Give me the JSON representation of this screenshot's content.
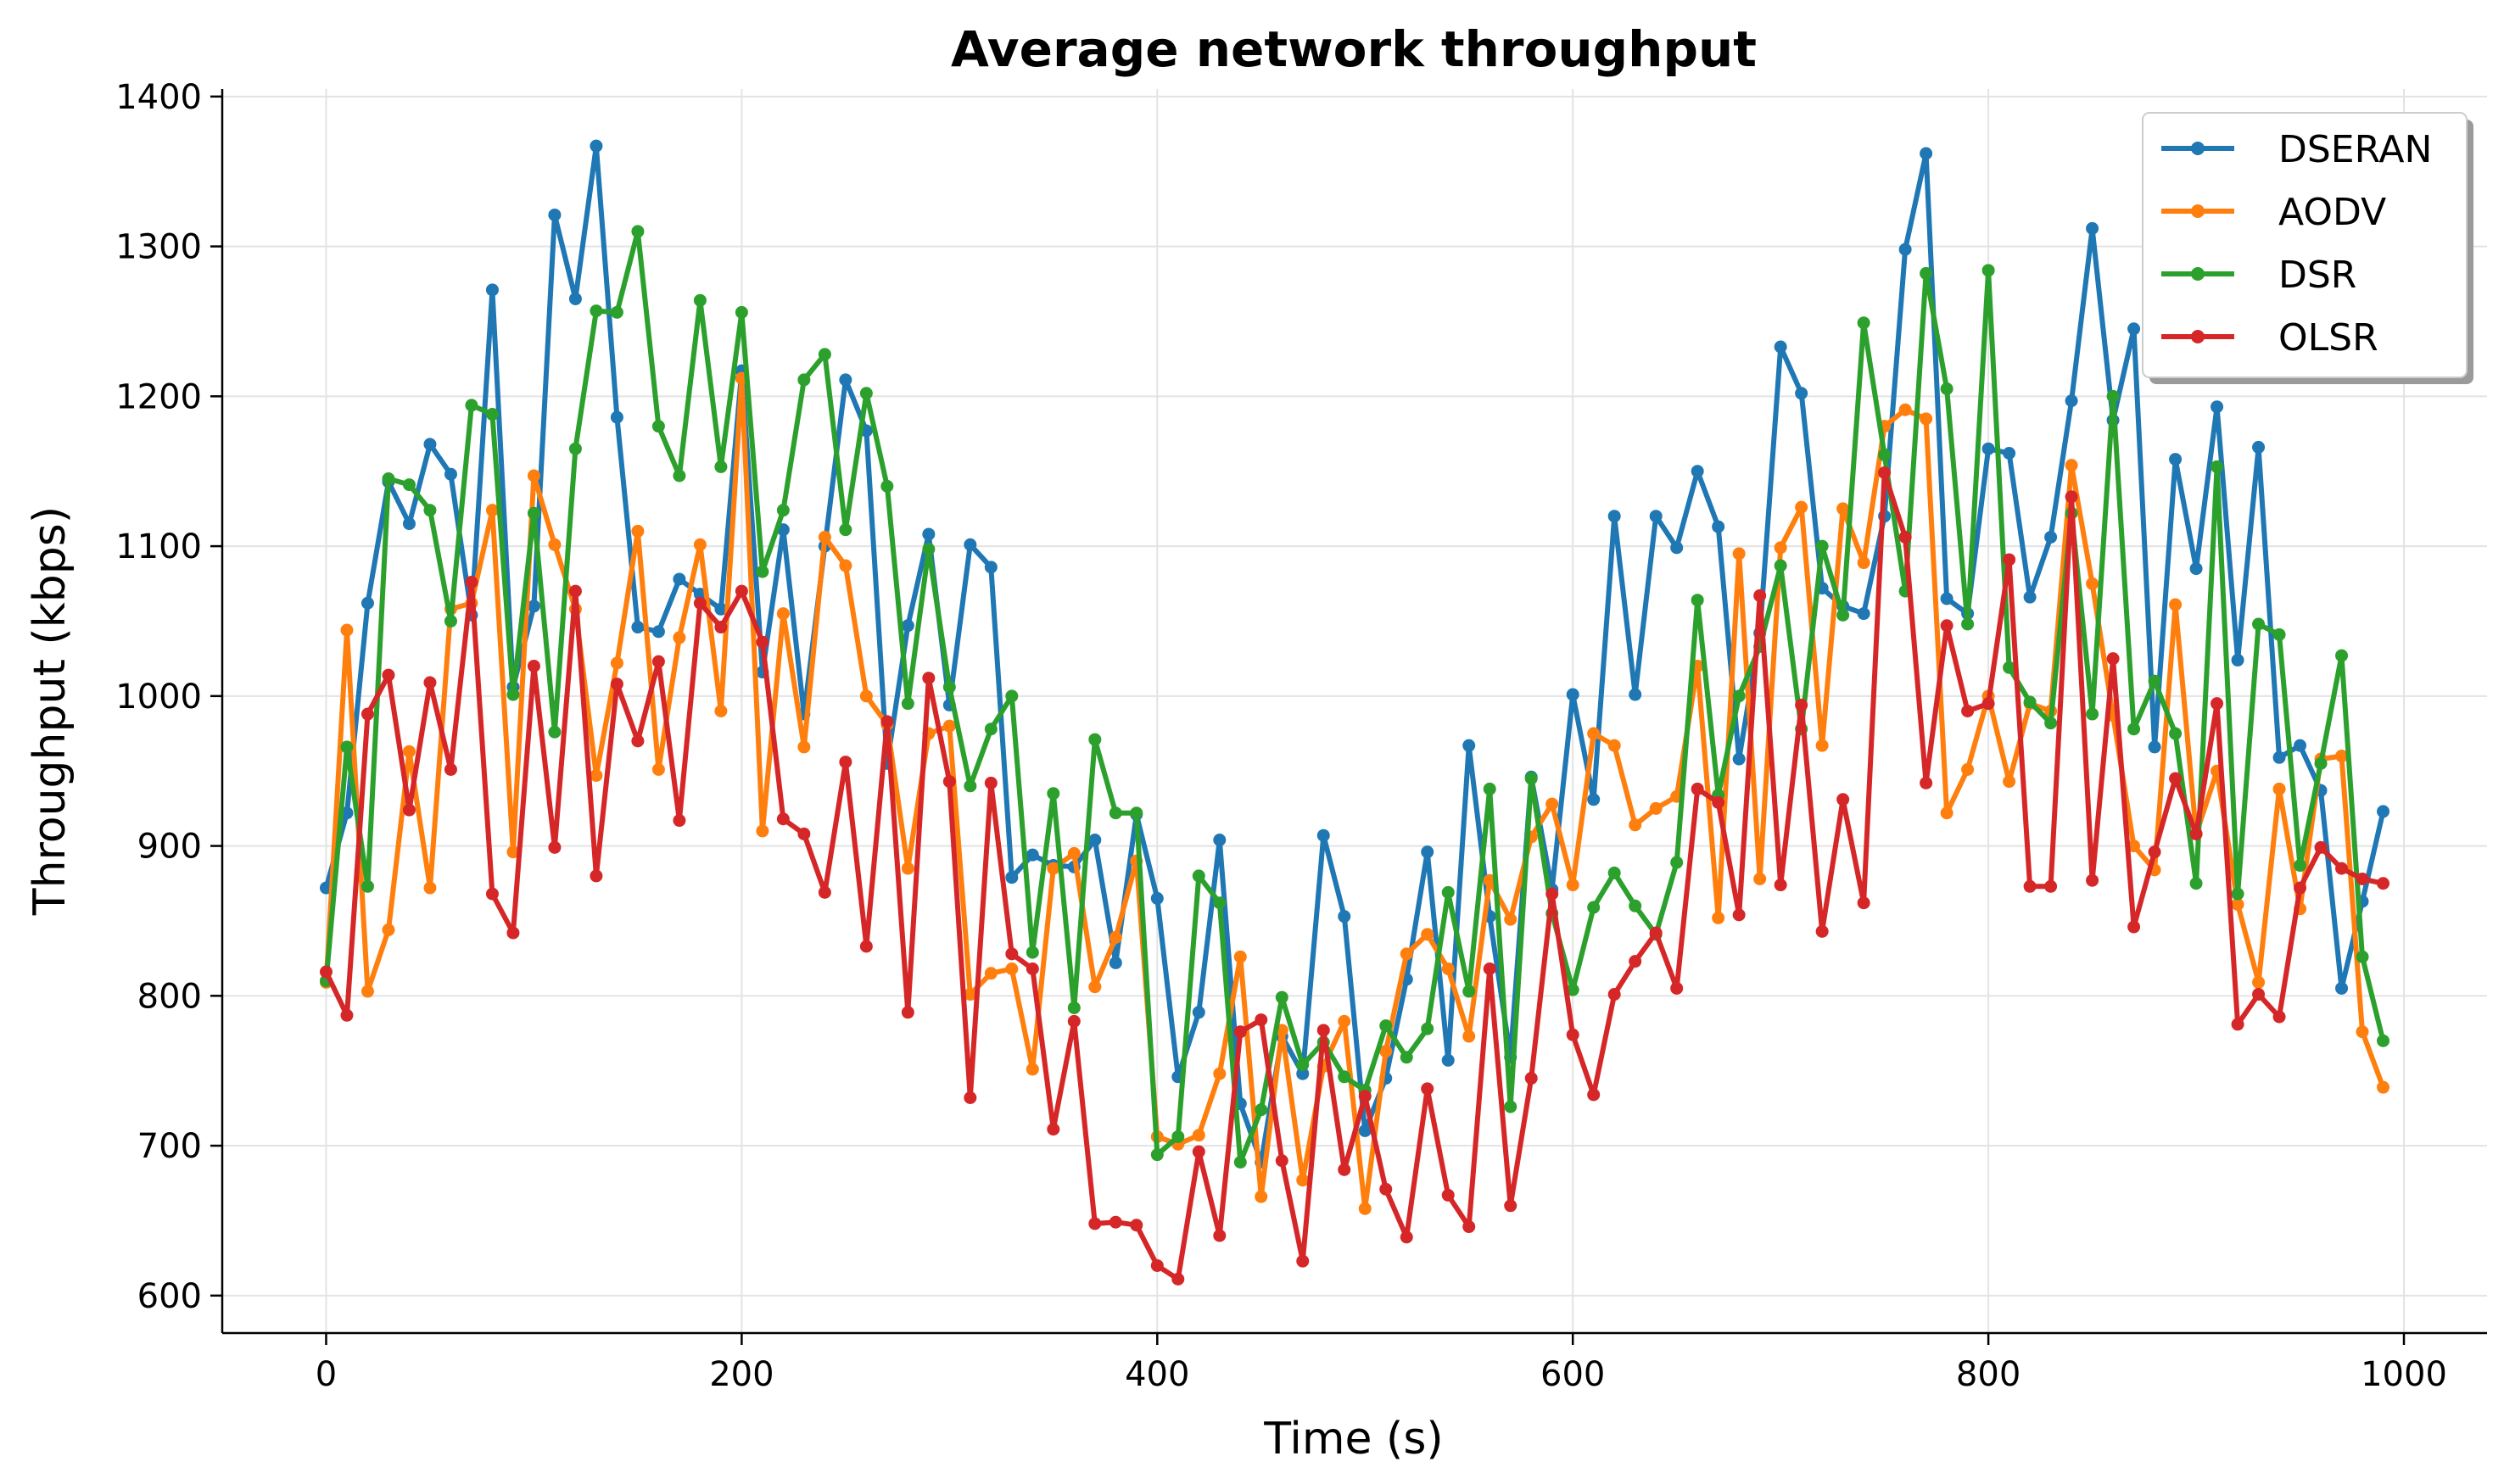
{
  "chart_data": {
    "type": "line",
    "title": "Average network throughput",
    "xlabel": "Time (s)",
    "ylabel": "Throughput (kbps)",
    "xlim": [
      -50,
      1040
    ],
    "ylim": [
      575,
      1405
    ],
    "xticks": [
      0,
      200,
      400,
      600,
      800,
      1000
    ],
    "yticks": [
      600,
      700,
      800,
      900,
      1000,
      1100,
      1200,
      1300,
      1400
    ],
    "grid": true,
    "legend_position": "top-right",
    "x": [
      0,
      10,
      20,
      30,
      40,
      50,
      60,
      70,
      80,
      90,
      100,
      110,
      120,
      130,
      140,
      150,
      160,
      170,
      180,
      190,
      200,
      210,
      220,
      230,
      240,
      250,
      260,
      270,
      280,
      290,
      300,
      310,
      320,
      330,
      340,
      350,
      360,
      370,
      380,
      390,
      400,
      410,
      420,
      430,
      440,
      450,
      460,
      470,
      480,
      490,
      500,
      510,
      520,
      530,
      540,
      550,
      560,
      570,
      580,
      590,
      600,
      610,
      620,
      630,
      640,
      650,
      660,
      670,
      680,
      690,
      700,
      710,
      720,
      730,
      740,
      750,
      760,
      770,
      780,
      790,
      800,
      810,
      820,
      830,
      840,
      850,
      860,
      870,
      880,
      890,
      900,
      910,
      920,
      930,
      940,
      950,
      960,
      970,
      980,
      990
    ],
    "series": [
      {
        "name": "DSERAN",
        "color": "#1f77b4",
        "values": [
          872,
          922,
          1062,
          1143,
          1115,
          1168,
          1148,
          1054,
          1271,
          1006,
          1060,
          1321,
          1265,
          1367,
          1186,
          1046,
          1043,
          1078,
          1068,
          1058,
          1217,
          1016,
          1111,
          988,
          1100,
          1211,
          1177,
          955,
          1047,
          1108,
          994,
          1101,
          1086,
          879,
          894,
          887,
          886,
          904,
          822,
          921,
          865,
          746,
          789,
          904,
          728,
          689,
          773,
          748,
          907,
          853,
          710,
          745,
          811,
          896,
          757,
          967,
          853,
          759,
          946,
          871,
          1001,
          931,
          1120,
          1001,
          1120,
          1099,
          1150,
          1113,
          958,
          1042,
          1233,
          1202,
          1072,
          1060,
          1055,
          1120,
          1298,
          1362,
          1065,
          1055,
          1165,
          1162,
          1066,
          1106,
          1197,
          1312,
          1184,
          1245,
          966,
          1158,
          1085,
          1193,
          1024,
          1166,
          959,
          967,
          937,
          805,
          863,
          923
        ]
      },
      {
        "name": "AODV",
        "color": "#ff7f0e",
        "values": [
          809,
          1044,
          803,
          844,
          963,
          872,
          1058,
          1062,
          1124,
          896,
          1147,
          1101,
          1058,
          947,
          1022,
          1110,
          951,
          1039,
          1101,
          990,
          1212,
          910,
          1055,
          966,
          1106,
          1087,
          1000,
          981,
          885,
          975,
          980,
          801,
          815,
          818,
          751,
          885,
          895,
          806,
          839,
          890,
          706,
          701,
          707,
          748,
          826,
          666,
          777,
          677,
          753,
          783,
          658,
          763,
          828,
          841,
          818,
          773,
          877,
          851,
          906,
          928,
          874,
          975,
          967,
          914,
          925,
          933,
          1020,
          852,
          1095,
          878,
          1099,
          1126,
          967,
          1125,
          1089,
          1180,
          1191,
          1185,
          922,
          951,
          1000,
          943,
          995,
          990,
          1154,
          1075,
          987,
          900,
          884,
          1061,
          908,
          950,
          861,
          809,
          938,
          858,
          958,
          960,
          776,
          739
        ]
      },
      {
        "name": "DSR",
        "color": "#2ca02c",
        "values": [
          810,
          966,
          873,
          1145,
          1141,
          1124,
          1050,
          1194,
          1188,
          1001,
          1122,
          976,
          1165,
          1257,
          1256,
          1310,
          1180,
          1147,
          1264,
          1153,
          1256,
          1083,
          1124,
          1211,
          1228,
          1111,
          1202,
          1140,
          995,
          1098,
          1006,
          940,
          978,
          1000,
          829,
          935,
          792,
          971,
          922,
          922,
          694,
          706,
          880,
          862,
          689,
          724,
          799,
          754,
          769,
          746,
          737,
          780,
          759,
          778,
          869,
          803,
          938,
          726,
          945,
          855,
          804,
          859,
          882,
          860,
          841,
          889,
          1064,
          934,
          1000,
          1033,
          1087,
          978,
          1100,
          1054,
          1249,
          1161,
          1070,
          1282,
          1205,
          1048,
          1284,
          1019,
          996,
          982,
          1122,
          988,
          1200,
          978,
          1010,
          975,
          875,
          1153,
          868,
          1048,
          1041,
          887,
          955,
          1027,
          826,
          770
        ]
      },
      {
        "name": "OLSR",
        "color": "#d62728",
        "values": [
          816,
          787,
          988,
          1014,
          924,
          1009,
          951,
          1076,
          868,
          842,
          1020,
          899,
          1070,
          880,
          1008,
          970,
          1023,
          917,
          1062,
          1046,
          1070,
          1036,
          918,
          908,
          869,
          956,
          833,
          983,
          789,
          1012,
          943,
          732,
          942,
          828,
          818,
          711,
          783,
          648,
          649,
          647,
          620,
          611,
          696,
          640,
          776,
          784,
          690,
          623,
          777,
          684,
          733,
          671,
          639,
          738,
          667,
          646,
          818,
          660,
          745,
          868,
          774,
          734,
          801,
          823,
          842,
          805,
          938,
          929,
          854,
          1067,
          874,
          994,
          843,
          931,
          862,
          1149,
          1106,
          942,
          1047,
          990,
          995,
          1091,
          873,
          873,
          1133,
          877,
          1025,
          846,
          896,
          945,
          908,
          995,
          781,
          801,
          786,
          872,
          899,
          885,
          878,
          875
        ]
      }
    ]
  }
}
